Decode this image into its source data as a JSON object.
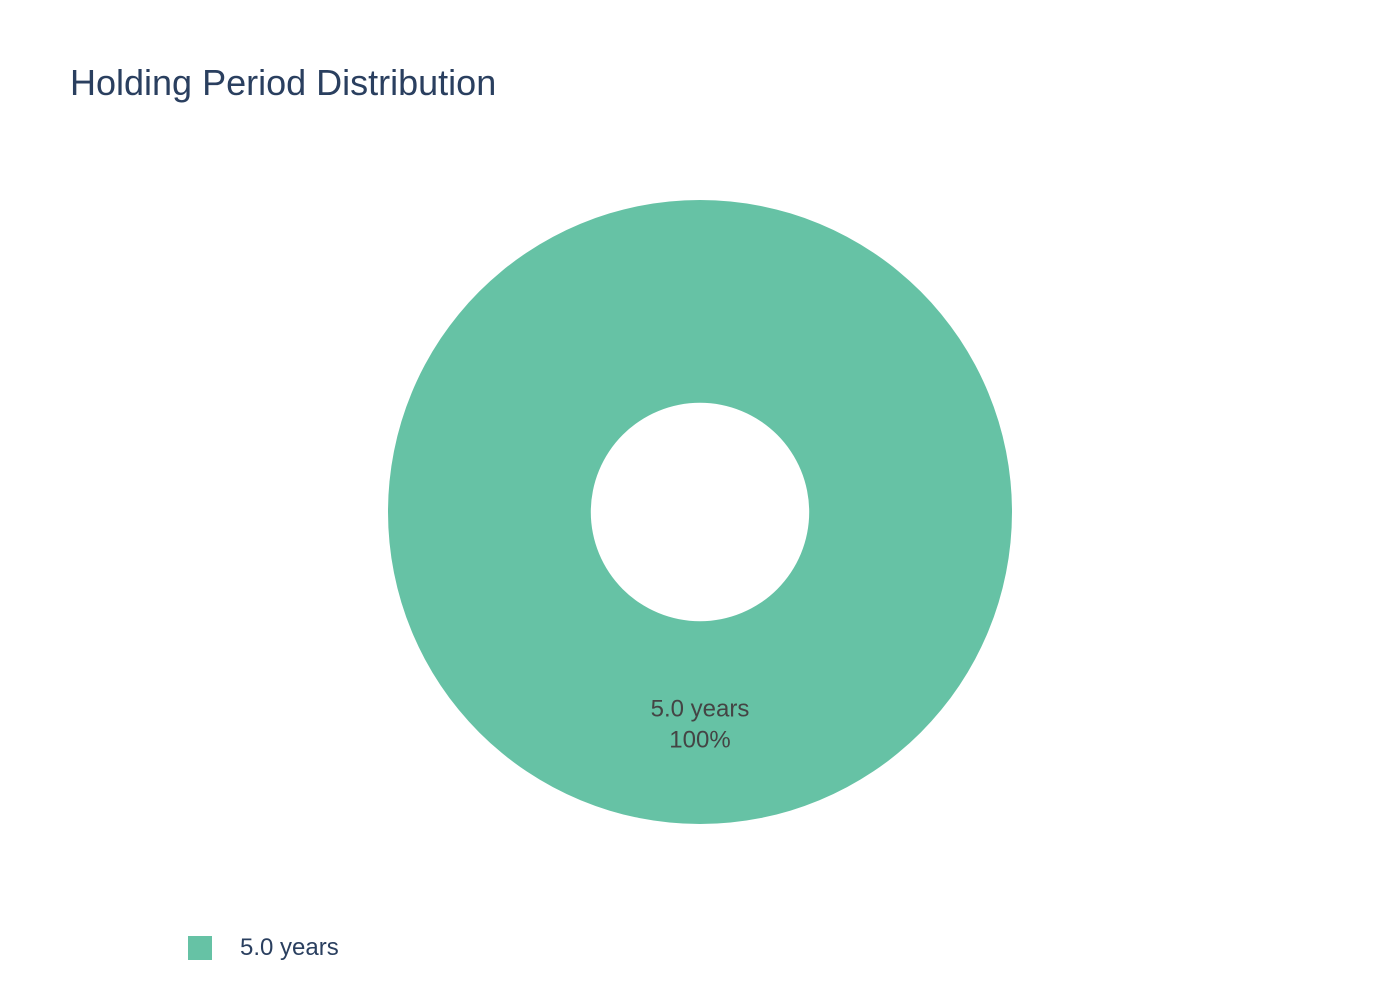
{
  "chart_data": {
    "type": "pie",
    "title": "Holding Period Distribution",
    "hole": 0.35,
    "slices": [
      {
        "label": "5.0 years",
        "value": 100,
        "percent_text": "100%",
        "color": "#66c2a5"
      }
    ],
    "legend": {
      "placement": "bottom-left",
      "entries": [
        "5.0 years"
      ]
    }
  }
}
